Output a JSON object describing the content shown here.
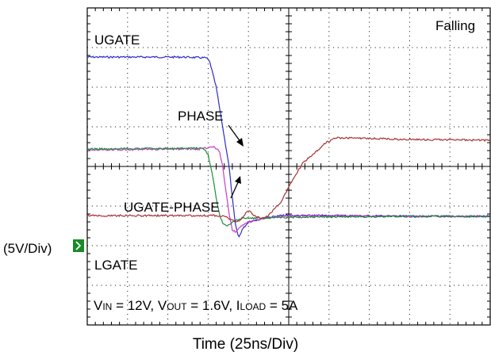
{
  "chart_data": {
    "type": "line",
    "title": "Falling",
    "xlabel": "Time  (25ns/Div)",
    "ylabel": "(5V/Div)",
    "x_unit": "ns",
    "y_unit": "V",
    "xlim": [
      0,
      250
    ],
    "ylim": [
      -20,
      20
    ],
    "x_divisions": 10,
    "y_divisions": 8,
    "grid": true,
    "conditions": {
      "vin_label": "V",
      "vin_sub": "IN",
      "vin_value": " = 12V, ",
      "vout_label": "V",
      "vout_sub": "OUT",
      "vout_value": " = 1.6V, ",
      "iload_label": "I",
      "iload_sub": "LOAD",
      "iload_value": " = 5A"
    },
    "trace_labels": {
      "ugate": "UGATE",
      "phase": "PHASE",
      "ugate_phase": "UGATE-PHASE",
      "lgate": "LGATE"
    },
    "series": [
      {
        "name": "UGATE",
        "color": "#2b2bc8",
        "x": [
          0,
          60,
          74,
          76,
          80,
          84,
          88,
          90,
          92,
          94,
          96,
          100,
          110,
          120,
          130,
          140,
          160,
          200,
          250
        ],
        "y": [
          13.8,
          13.8,
          13.7,
          13.2,
          10,
          5,
          0,
          -4,
          -7.5,
          -9,
          -8,
          -7,
          -6.5,
          -6.2,
          -6.2,
          -6.2,
          -6.2,
          -6.3,
          -6.3
        ]
      },
      {
        "name": "PHASE",
        "color": "#c83cc8",
        "x": [
          0,
          70,
          78,
          82,
          84,
          86,
          88,
          90,
          92,
          94,
          96,
          100,
          110,
          120,
          140,
          200,
          250
        ],
        "y": [
          2.1,
          2.2,
          2.5,
          2.0,
          0,
          -3,
          -6,
          -8,
          -8.3,
          -7.8,
          -7.5,
          -7,
          -6.5,
          -6.3,
          -6.2,
          -6.3,
          -6.3
        ]
      },
      {
        "name": "UGATE-PHASE",
        "color": "#1f8a3c",
        "x": [
          0,
          72,
          75,
          78,
          80,
          82,
          84,
          86,
          88,
          90,
          92,
          96,
          100,
          110,
          130,
          200,
          250
        ],
        "y": [
          2.2,
          2.3,
          1.5,
          -1.5,
          -4,
          -6,
          -7.2,
          -7.5,
          -7.3,
          -7.0,
          -6.8,
          -6.6,
          -6.5,
          -6.5,
          -6.4,
          -6.3,
          -6.3
        ]
      },
      {
        "name": "LGATE",
        "color": "#a83232",
        "x": [
          0,
          80,
          86,
          90,
          94,
          96,
          100,
          104,
          108,
          112,
          120,
          128,
          134,
          140,
          148,
          154,
          160,
          180,
          200,
          250
        ],
        "y": [
          -6.2,
          -6.2,
          -6.3,
          -6.8,
          -7.0,
          -6.5,
          -5.5,
          -6.3,
          -6.5,
          -6.3,
          -4.5,
          -1.5,
          0.5,
          1.5,
          3.0,
          3.6,
          3.6,
          3.5,
          3.4,
          3.3
        ]
      }
    ]
  }
}
